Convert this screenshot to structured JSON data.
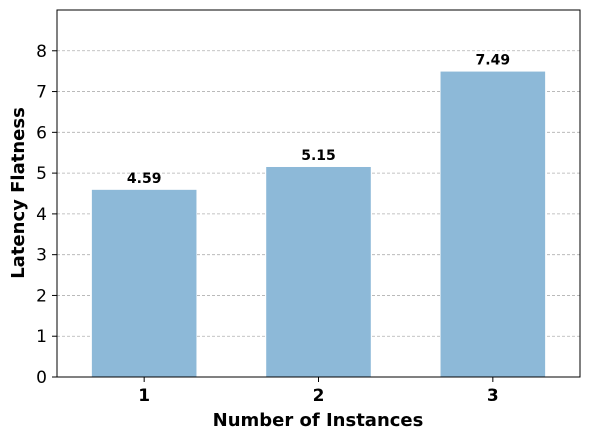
{
  "chart_data": {
    "type": "bar",
    "categories": [
      "1",
      "2",
      "3"
    ],
    "values": [
      4.59,
      5.15,
      7.49
    ],
    "value_labels": [
      "4.59",
      "5.15",
      "7.49"
    ],
    "xlabel": "Number of Instances",
    "ylabel": "Latency Flatness",
    "ylim": [
      0,
      9
    ],
    "yticks": [
      0,
      1,
      2,
      3,
      4,
      5,
      6,
      7,
      8
    ],
    "grid": "horizontal dashed",
    "bar_color": "#8DB9D8",
    "grid_color": "#b0b0b0"
  }
}
